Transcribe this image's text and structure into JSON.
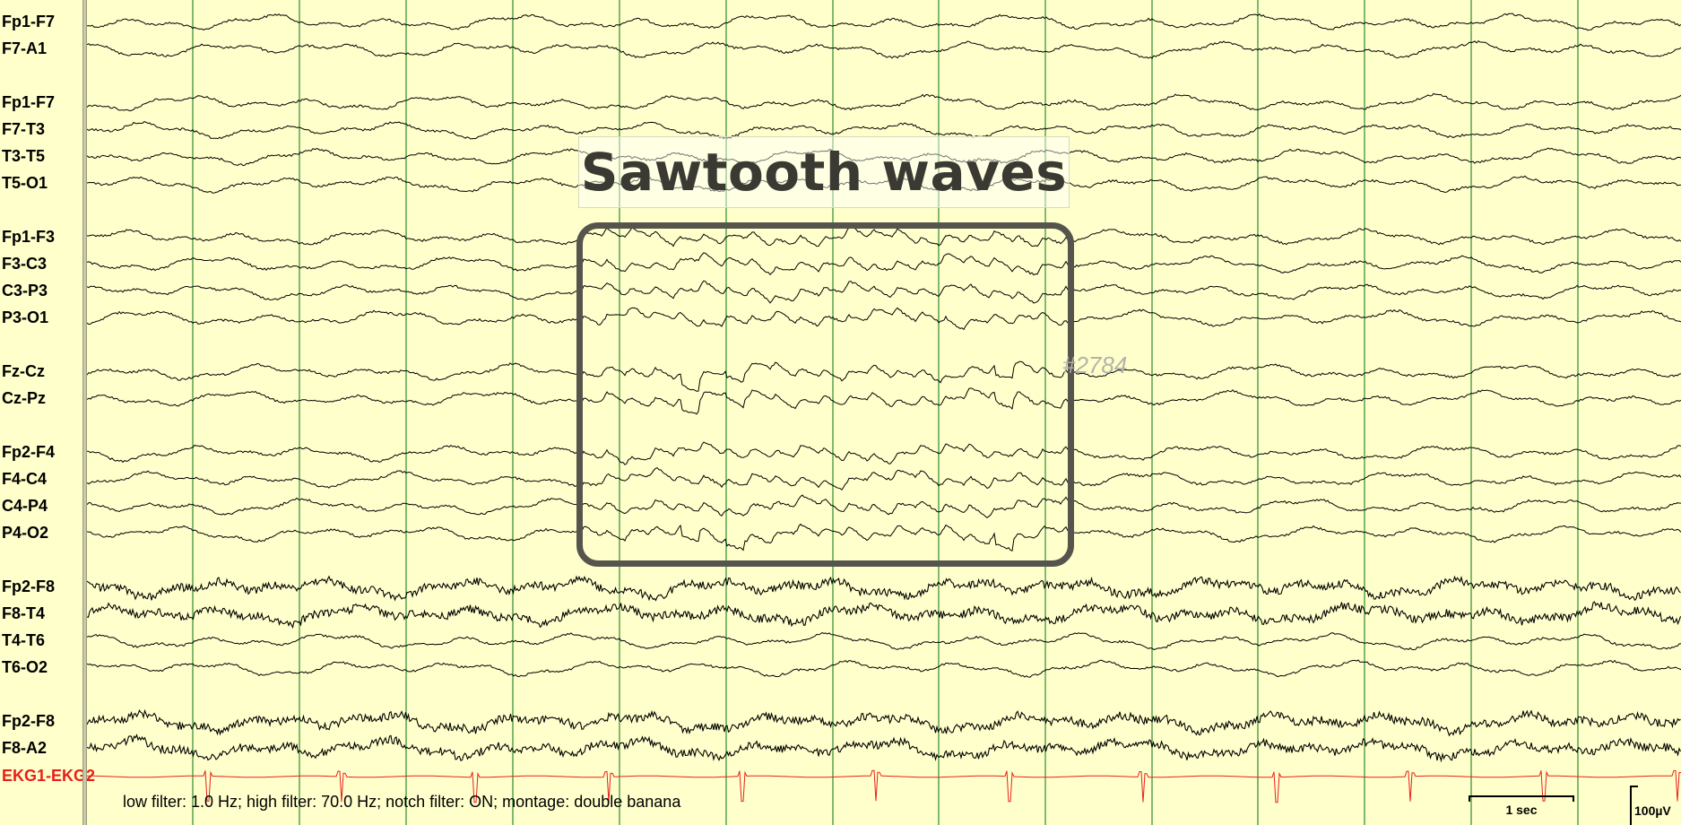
{
  "title": "Sawtooth waves",
  "watermark": "#2784",
  "filter_info": "low filter: 1.0 Hz; high filter: 70.0 Hz; notch filter: ON; montage: double banana",
  "time_scale_label": "1 sec",
  "amplitude_scale_label": "100µV",
  "channels": [
    {
      "label": "Fp1-F7",
      "color": "#000000"
    },
    {
      "label": "F7-A1",
      "color": "#000000"
    },
    {
      "label": "Fp1-F7",
      "color": "#000000"
    },
    {
      "label": "F7-T3",
      "color": "#000000"
    },
    {
      "label": "T3-T5",
      "color": "#000000"
    },
    {
      "label": "T5-O1",
      "color": "#000000"
    },
    {
      "label": "Fp1-F3",
      "color": "#000000"
    },
    {
      "label": "F3-C3",
      "color": "#000000"
    },
    {
      "label": "C3-P3",
      "color": "#000000"
    },
    {
      "label": "P3-O1",
      "color": "#000000"
    },
    {
      "label": "Fz-Cz",
      "color": "#000000"
    },
    {
      "label": "Cz-Pz",
      "color": "#000000"
    },
    {
      "label": "Fp2-F4",
      "color": "#000000"
    },
    {
      "label": "F4-C4",
      "color": "#000000"
    },
    {
      "label": "C4-P4",
      "color": "#000000"
    },
    {
      "label": "P4-O2",
      "color": "#000000"
    },
    {
      "label": "Fp2-F8",
      "color": "#000000"
    },
    {
      "label": "F8-T4",
      "color": "#000000"
    },
    {
      "label": "T4-T6",
      "color": "#000000"
    },
    {
      "label": "T6-O2",
      "color": "#000000"
    },
    {
      "label": "Fp2-F8",
      "color": "#000000"
    },
    {
      "label": "F8-A2",
      "color": "#000000"
    },
    {
      "label": "EKG1-EKG2",
      "color": "#e8201a"
    }
  ],
  "colors": {
    "background": "#ffffcc",
    "second_gridline": "#2e8b2e",
    "trace": "#000000",
    "ekg_trace": "#e8201a",
    "annotation_box": "#55554d"
  }
}
